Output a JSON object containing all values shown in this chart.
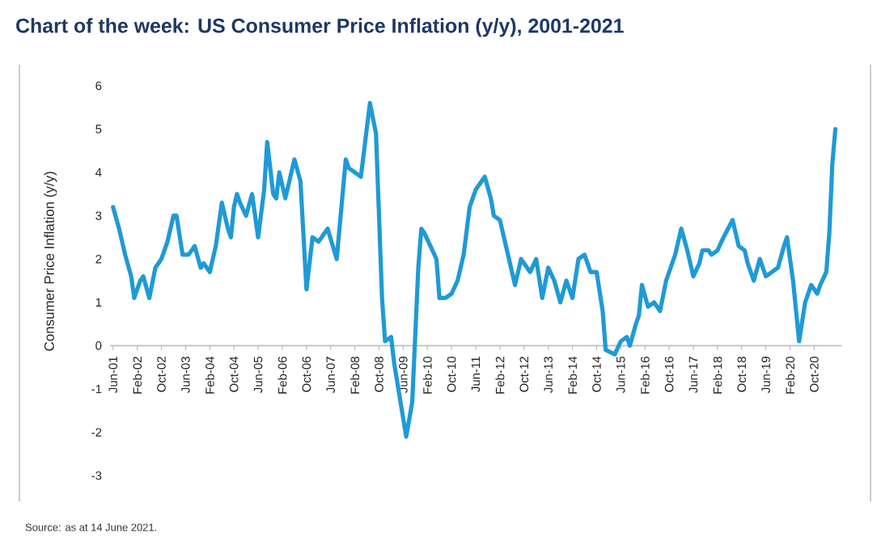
{
  "chart_data": {
    "type": "line",
    "title": "Chart of the week: US Consumer Price Inflation (y/y), 2001-2021",
    "ylabel": "Consumer Price Inflation (y/y)",
    "annotations": [
      "Source: as at 14 June 2021."
    ],
    "color": "#1f9ad6",
    "x": [
      "2001-06",
      "2001-08",
      "2001-10",
      "2001-12",
      "2002-01",
      "2002-03",
      "2002-04",
      "2002-06",
      "2002-08",
      "2002-10",
      "2002-12",
      "2003-02",
      "2003-03",
      "2003-05",
      "2003-07",
      "2003-09",
      "2003-11",
      "2003-12",
      "2004-02",
      "2004-04",
      "2004-06",
      "2004-08",
      "2004-09",
      "2004-10",
      "2004-11",
      "2004-12",
      "2005-02",
      "2005-04",
      "2005-06",
      "2005-08",
      "2005-09",
      "2005-11",
      "2005-12",
      "2006-01",
      "2006-03",
      "2006-06",
      "2006-08",
      "2006-10",
      "2006-12",
      "2007-02",
      "2007-05",
      "2007-08",
      "2007-11",
      "2007-12",
      "2008-02",
      "2008-04",
      "2008-07",
      "2008-09",
      "2008-11",
      "2008-12",
      "2009-02",
      "2009-03",
      "2009-07",
      "2009-09",
      "2009-11",
      "2009-12",
      "2010-01",
      "2010-03",
      "2010-05",
      "2010-06",
      "2010-08",
      "2010-10",
      "2010-12",
      "2011-02",
      "2011-04",
      "2011-06",
      "2011-09",
      "2011-11",
      "2011-12",
      "2012-02",
      "2012-04",
      "2012-06",
      "2012-07",
      "2012-09",
      "2012-11",
      "2012-12",
      "2013-02",
      "2013-04",
      "2013-06",
      "2013-08",
      "2013-10",
      "2013-12",
      "2014-02",
      "2014-04",
      "2014-06",
      "2014-08",
      "2014-10",
      "2014-12",
      "2015-01",
      "2015-04",
      "2015-06",
      "2015-08",
      "2015-09",
      "2015-11",
      "2015-12",
      "2016-01",
      "2016-03",
      "2016-05",
      "2016-07",
      "2016-09",
      "2016-12",
      "2017-02",
      "2017-04",
      "2017-06",
      "2017-08",
      "2017-09",
      "2017-11",
      "2017-12",
      "2018-02",
      "2018-04",
      "2018-07",
      "2018-09",
      "2018-11",
      "2018-12",
      "2019-02",
      "2019-04",
      "2019-06",
      "2019-08",
      "2019-10",
      "2019-12",
      "2020-01",
      "2020-03",
      "2020-05",
      "2020-07",
      "2020-09",
      "2020-11",
      "2020-12",
      "2021-02",
      "2021-03",
      "2021-04",
      "2021-05"
    ],
    "values": [
      3.2,
      2.7,
      2.1,
      1.6,
      1.1,
      1.5,
      1.6,
      1.1,
      1.8,
      2.0,
      2.4,
      3.0,
      3.0,
      2.1,
      2.1,
      2.3,
      1.8,
      1.9,
      1.7,
      2.3,
      3.3,
      2.7,
      2.5,
      3.2,
      3.5,
      3.3,
      3.0,
      3.5,
      2.5,
      3.6,
      4.7,
      3.5,
      3.4,
      4.0,
      3.4,
      4.3,
      3.8,
      1.3,
      2.5,
      2.4,
      2.7,
      2.0,
      4.3,
      4.1,
      4.0,
      3.9,
      5.6,
      4.9,
      1.1,
      0.1,
      0.2,
      -0.4,
      -2.1,
      -1.3,
      1.8,
      2.7,
      2.6,
      2.3,
      2.0,
      1.1,
      1.1,
      1.2,
      1.5,
      2.1,
      3.2,
      3.6,
      3.9,
      3.4,
      3.0,
      2.9,
      2.3,
      1.7,
      1.4,
      2.0,
      1.8,
      1.7,
      2.0,
      1.1,
      1.8,
      1.5,
      1.0,
      1.5,
      1.1,
      2.0,
      2.1,
      1.7,
      1.7,
      0.8,
      -0.1,
      -0.2,
      0.1,
      0.2,
      0.0,
      0.5,
      0.7,
      1.4,
      0.9,
      1.0,
      0.8,
      1.5,
      2.1,
      2.7,
      2.2,
      1.6,
      1.9,
      2.2,
      2.2,
      2.1,
      2.2,
      2.5,
      2.9,
      2.3,
      2.2,
      1.9,
      1.5,
      2.0,
      1.6,
      1.7,
      1.8,
      2.3,
      2.5,
      1.5,
      0.1,
      1.0,
      1.4,
      1.2,
      1.4,
      1.7,
      2.6,
      4.2,
      5.0
    ],
    "xlim": [
      "2001-05",
      "2021-07"
    ],
    "ylim": [
      -3,
      6
    ],
    "yticks": [
      -3,
      -2,
      -1,
      0,
      1,
      2,
      3,
      4,
      5,
      6
    ],
    "xticks": [
      {
        "value": "2001-06",
        "label": "Jun-01"
      },
      {
        "value": "2002-02",
        "label": "Feb-02"
      },
      {
        "value": "2002-10",
        "label": "Oct-02"
      },
      {
        "value": "2003-06",
        "label": "Jun-03"
      },
      {
        "value": "2004-02",
        "label": "Feb-04"
      },
      {
        "value": "2004-10",
        "label": "Oct-04"
      },
      {
        "value": "2005-06",
        "label": "Jun-05"
      },
      {
        "value": "2006-02",
        "label": "Feb-06"
      },
      {
        "value": "2006-10",
        "label": "Oct-06"
      },
      {
        "value": "2007-06",
        "label": "Jun-07"
      },
      {
        "value": "2008-02",
        "label": "Feb-08"
      },
      {
        "value": "2008-10",
        "label": "Oct-08"
      },
      {
        "value": "2009-06",
        "label": "Jun-09"
      },
      {
        "value": "2010-02",
        "label": "Feb-10"
      },
      {
        "value": "2010-10",
        "label": "Oct-10"
      },
      {
        "value": "2011-06",
        "label": "Jun-11"
      },
      {
        "value": "2012-02",
        "label": "Feb-12"
      },
      {
        "value": "2012-10",
        "label": "Oct-12"
      },
      {
        "value": "2013-06",
        "label": "Jun-13"
      },
      {
        "value": "2014-02",
        "label": "Feb-14"
      },
      {
        "value": "2014-10",
        "label": "Oct-14"
      },
      {
        "value": "2015-06",
        "label": "Jun-15"
      },
      {
        "value": "2016-02",
        "label": "Feb-16"
      },
      {
        "value": "2016-10",
        "label": "Oct-16"
      },
      {
        "value": "2017-06",
        "label": "Jun-17"
      },
      {
        "value": "2018-02",
        "label": "Feb-18"
      },
      {
        "value": "2018-10",
        "label": "Oct-18"
      },
      {
        "value": "2019-06",
        "label": "Jun-19"
      },
      {
        "value": "2020-02",
        "label": "Feb-20"
      },
      {
        "value": "2020-10",
        "label": "Oct-20"
      }
    ],
    "grid": false
  }
}
